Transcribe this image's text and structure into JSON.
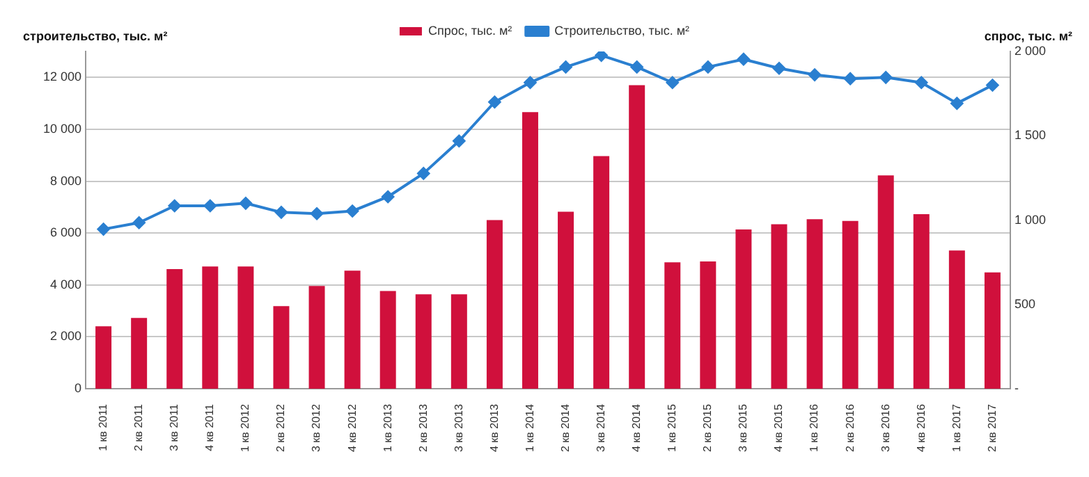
{
  "chart_data": {
    "type": "bar",
    "categories": [
      "1 кв 2011",
      "2 кв 2011",
      "3 кв 2011",
      "4 кв 2011",
      "1 кв 2012",
      "2 кв 2012",
      "3 кв 2012",
      "4 кв 2012",
      "1 кв 2013",
      "2 кв 2013",
      "3 кв 2013",
      "4 кв 2013",
      "1 кв 2014",
      "2 кв 2014",
      "3 кв 2014",
      "4 кв 2014",
      "1 кв 2015",
      "2 кв 2015",
      "3 кв 2015",
      "4 кв 2015",
      "1 кв 2016",
      "2 кв 2016",
      "3 кв 2016",
      "4 кв 2016",
      "1 кв 2017",
      "2 кв 2017"
    ],
    "series": [
      {
        "name": "Спрос, тыс. м²",
        "axis": "y2",
        "color": "#d0103c",
        "values": [
          370,
          420,
          710,
          725,
          725,
          490,
          610,
          700,
          580,
          560,
          560,
          1000,
          1640,
          1050,
          1380,
          1800,
          750,
          755,
          945,
          975,
          1005,
          995,
          1265,
          1035,
          820,
          690
        ]
      },
      {
        "name": "Строительство, тыс. м²",
        "type": "line",
        "color": "#2a7fd0",
        "values": [
          6150,
          6400,
          7050,
          7050,
          7150,
          6800,
          6750,
          6850,
          7400,
          8300,
          9550,
          11050,
          11800,
          12400,
          12850,
          12400,
          11800,
          12400,
          12700,
          12350,
          12100,
          11950,
          12000,
          11800,
          11000,
          11700
        ]
      }
    ],
    "ylabel": "строительство, тыс. м²",
    "y2label": "спрос, тыс. м²",
    "ylim": [
      0,
      13000
    ],
    "yticks": [
      0,
      {
        "value": 2000,
        "label": "2 000"
      },
      {
        "value": 4000,
        "label": "4 000"
      },
      {
        "value": 6000,
        "label": "6 000"
      },
      {
        "value": 8000,
        "label": "8 000"
      },
      {
        "value": 10000,
        "label": "10 000"
      },
      {
        "value": 12000,
        "label": "12 000"
      }
    ],
    "y2lim": [
      0,
      2000
    ],
    "y2ticks": [
      {
        "value": 0,
        "label": "-"
      },
      500,
      {
        "value": 1000,
        "label": "1 000"
      },
      {
        "value": 1500,
        "label": "1 500"
      },
      {
        "value": 2000,
        "label": "2 000"
      }
    ],
    "grid": "y",
    "legend": "top",
    "marker": "diamond",
    "line_style": "solid"
  }
}
